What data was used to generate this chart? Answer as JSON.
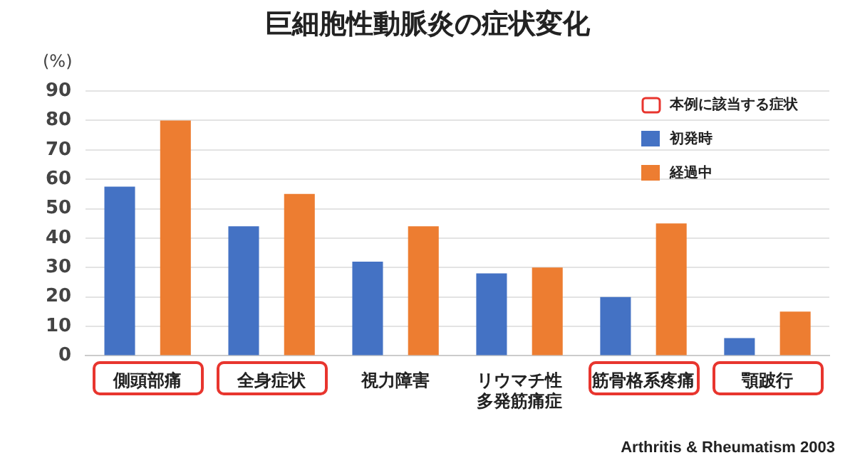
{
  "chart_data": {
    "type": "bar",
    "title": "巨細胞性動脈炎の症状変化",
    "ylabel": "(%)",
    "categories": [
      "側頭部痛",
      "全身症状",
      "視力障害",
      "リウマチ性多発筋痛症",
      "筋骨格系疼痛",
      "顎跛行"
    ],
    "series": [
      {
        "name": "初発時",
        "color": "#4472c4",
        "values": [
          57.5,
          44,
          32,
          28,
          20,
          6
        ]
      },
      {
        "name": "経過中",
        "color": "#ed7d31",
        "values": [
          80,
          55,
          44,
          30,
          45,
          15
        ]
      },
      {
        "name": "本例に該当する症状",
        "type": "other",
        "color": "#e8352e",
        "values": [
          true,
          true,
          false,
          false,
          true,
          true
        ]
      }
    ],
    "ylim": [
      0,
      90
    ],
    "yticks": [
      0,
      10,
      20,
      30,
      40,
      50,
      60,
      70,
      80,
      90
    ],
    "grid": "y",
    "legend": "top right",
    "annotations": [
      "Arthritis & Rheumatism 2003"
    ]
  }
}
